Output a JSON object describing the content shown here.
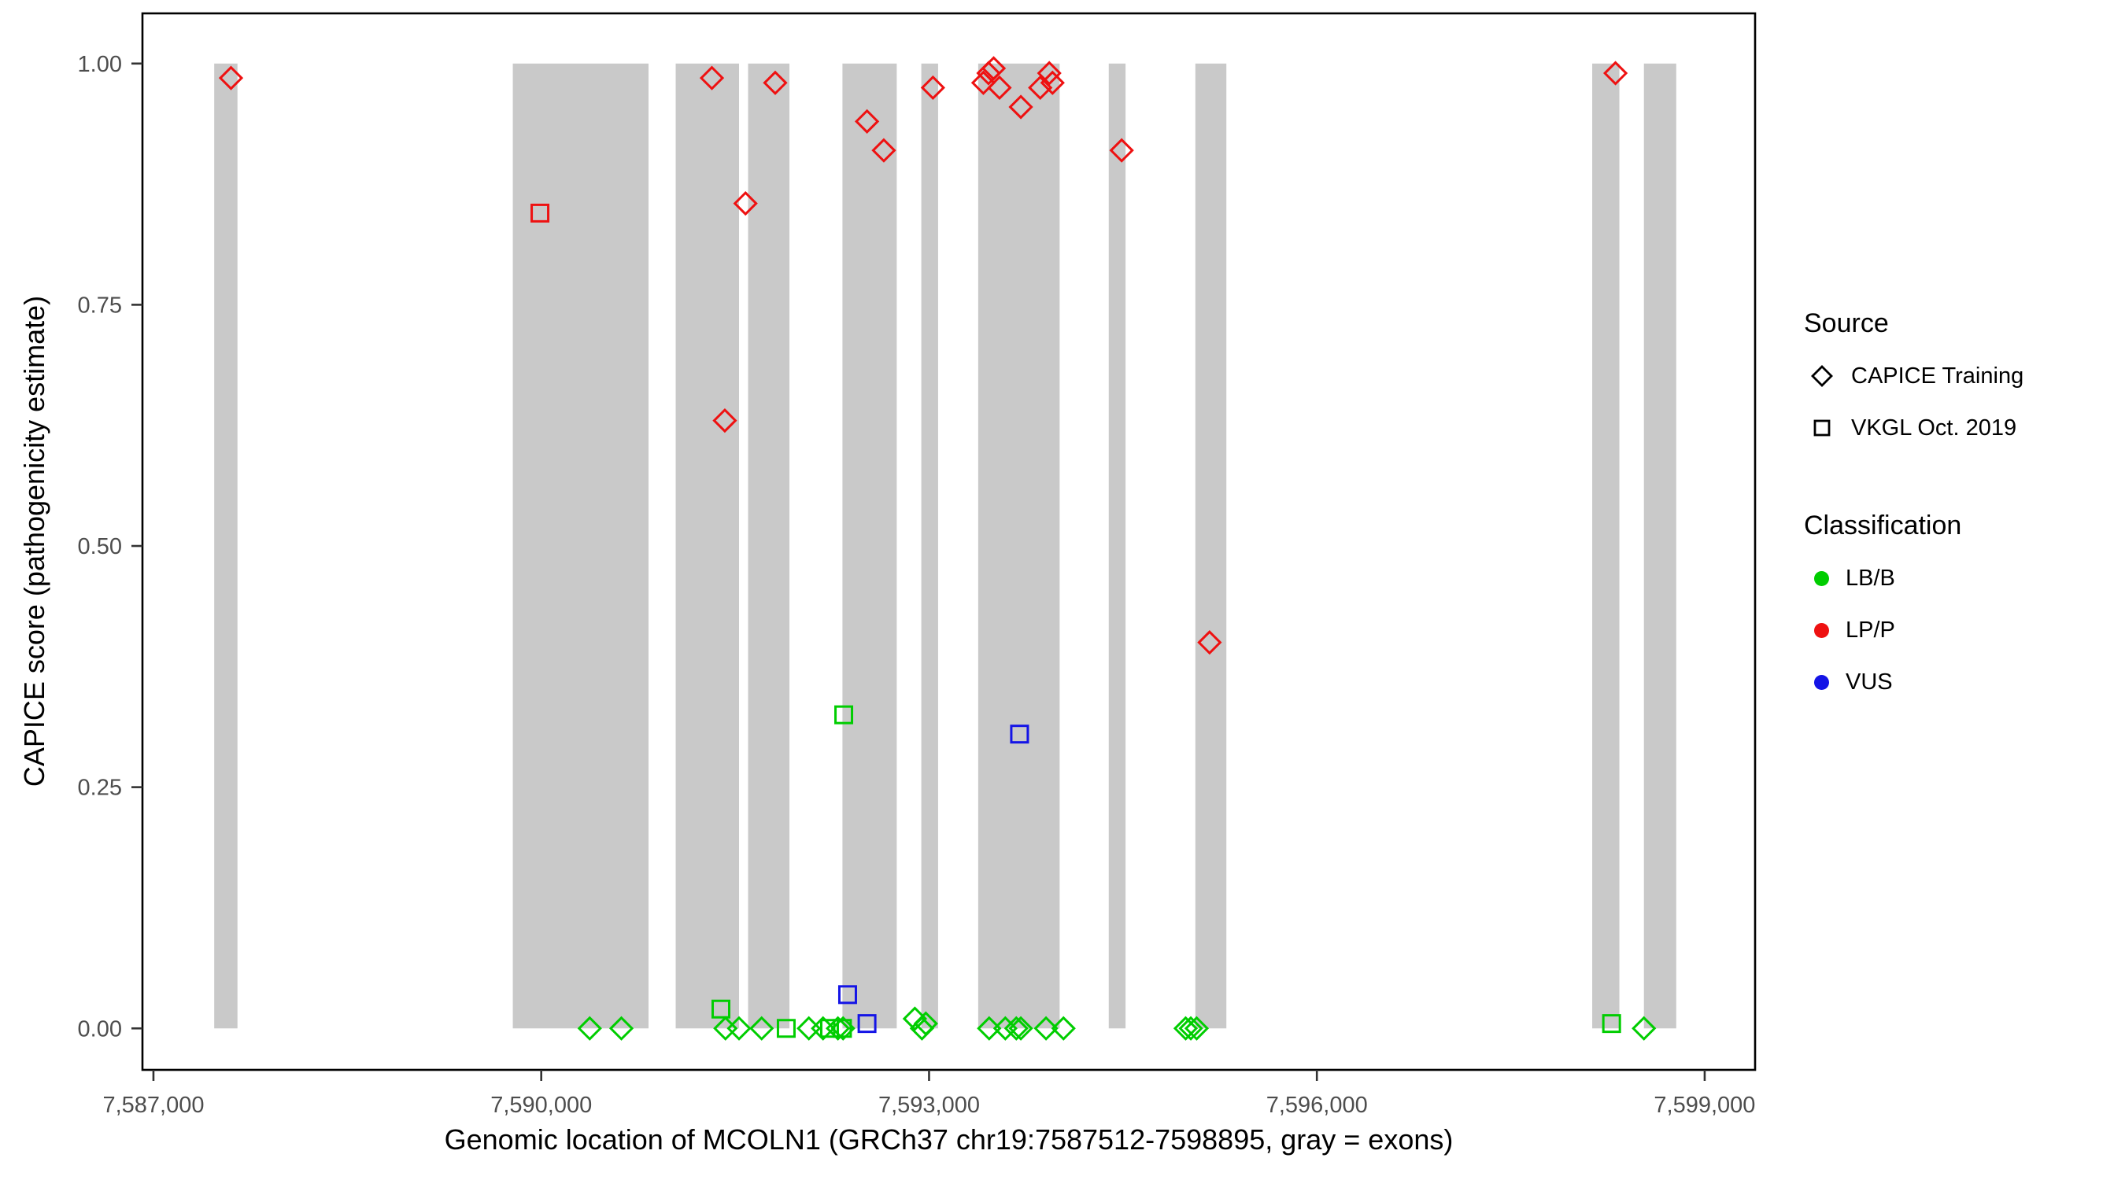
{
  "chart_data": {
    "type": "scatter",
    "xlabel": "Genomic location of MCOLN1 (GRCh37 chr19:7587512-7598895, gray = exons)",
    "ylabel": "CAPICE score (pathogenicity estimate)",
    "xlim": [
      7586915,
      7599390
    ],
    "ylim": [
      -0.043,
      1.052
    ],
    "x_ticks": [
      {
        "value": 7587000,
        "label": "7,587,000"
      },
      {
        "value": 7590000,
        "label": "7,590,000"
      },
      {
        "value": 7593000,
        "label": "7,593,000"
      },
      {
        "value": 7596000,
        "label": "7,596,000"
      },
      {
        "value": 7599000,
        "label": "7,599,000"
      }
    ],
    "y_ticks": [
      {
        "value": 0.0,
        "label": "0.00"
      },
      {
        "value": 0.25,
        "label": "0.25"
      },
      {
        "value": 0.5,
        "label": "0.50"
      },
      {
        "value": 0.75,
        "label": "0.75"
      },
      {
        "value": 1.0,
        "label": "1.00"
      }
    ],
    "exon_color": "#C9C9C9",
    "exons": [
      [
        7587470,
        7587650
      ],
      [
        7589780,
        7590830
      ],
      [
        7591040,
        7591530
      ],
      [
        7591600,
        7591920
      ],
      [
        7592330,
        7592750
      ],
      [
        7592940,
        7593070
      ],
      [
        7593380,
        7594010
      ],
      [
        7594390,
        7594520
      ],
      [
        7595060,
        7595300
      ],
      [
        7598130,
        7598340
      ],
      [
        7598530,
        7598780
      ]
    ],
    "series": [
      {
        "name": "CAPICE Training - LP/P",
        "source": "CAPICE Training",
        "classification": "LP/P",
        "shape": "diamond",
        "color": "#EE1111",
        "points": [
          [
            7587600,
            0.985
          ],
          [
            7591320,
            0.985
          ],
          [
            7591420,
            0.63
          ],
          [
            7591580,
            0.855
          ],
          [
            7591810,
            0.98
          ],
          [
            7592520,
            0.94
          ],
          [
            7592650,
            0.91
          ],
          [
            7593030,
            0.975
          ],
          [
            7593420,
            0.98
          ],
          [
            7593460,
            0.99
          ],
          [
            7593500,
            0.995
          ],
          [
            7593545,
            0.975
          ],
          [
            7593710,
            0.955
          ],
          [
            7593860,
            0.975
          ],
          [
            7593930,
            0.99
          ],
          [
            7593955,
            0.98
          ],
          [
            7594490,
            0.91
          ],
          [
            7595170,
            0.4
          ],
          [
            7598310,
            0.99
          ]
        ]
      },
      {
        "name": "VKGL Oct. 2019 - LP/P",
        "source": "VKGL Oct. 2019",
        "classification": "LP/P",
        "shape": "square",
        "color": "#EE1111",
        "points": [
          [
            7589990,
            0.845
          ]
        ]
      },
      {
        "name": "CAPICE Training - LB/B",
        "source": "CAPICE Training",
        "classification": "LB/B",
        "shape": "diamond",
        "color": "#00CD00",
        "points": [
          [
            7590375,
            0
          ],
          [
            7590620,
            0
          ],
          [
            7591425,
            0
          ],
          [
            7591530,
            0
          ],
          [
            7591705,
            0
          ],
          [
            7592070,
            0
          ],
          [
            7592180,
            0
          ],
          [
            7592295,
            0
          ],
          [
            7592335,
            0
          ],
          [
            7592890,
            0.01
          ],
          [
            7592945,
            0
          ],
          [
            7592975,
            0.005
          ],
          [
            7593465,
            0
          ],
          [
            7593590,
            0
          ],
          [
            7593675,
            0
          ],
          [
            7593710,
            0
          ],
          [
            7593905,
            0
          ],
          [
            7594040,
            0
          ],
          [
            7594985,
            0
          ],
          [
            7595025,
            0
          ],
          [
            7595070,
            0
          ],
          [
            7598530,
            0
          ]
        ]
      },
      {
        "name": "VKGL Oct. 2019 - LB/B",
        "source": "VKGL Oct. 2019",
        "classification": "LB/B",
        "shape": "square",
        "color": "#00CD00",
        "points": [
          [
            7591390,
            0.02
          ],
          [
            7591895,
            0
          ],
          [
            7592230,
            0
          ],
          [
            7592330,
            0
          ],
          [
            7592340,
            0.325
          ],
          [
            7598280,
            0.005
          ]
        ]
      },
      {
        "name": "VKGL Oct. 2019 - VUS",
        "source": "VKGL Oct. 2019",
        "classification": "VUS",
        "shape": "square",
        "color": "#1414E6",
        "points": [
          [
            7592370,
            0.035
          ],
          [
            7592520,
            0.005
          ],
          [
            7593700,
            0.305
          ]
        ]
      }
    ]
  },
  "legend": {
    "source": {
      "title": "Source",
      "items": [
        {
          "label": "CAPICE Training",
          "shape": "diamond"
        },
        {
          "label": "VKGL Oct. 2019",
          "shape": "square"
        }
      ]
    },
    "classification": {
      "title": "Classification",
      "items": [
        {
          "label": "LB/B",
          "color": "#00CD00"
        },
        {
          "label": "LP/P",
          "color": "#EE1111"
        },
        {
          "label": "VUS",
          "color": "#1414E6"
        }
      ]
    }
  }
}
